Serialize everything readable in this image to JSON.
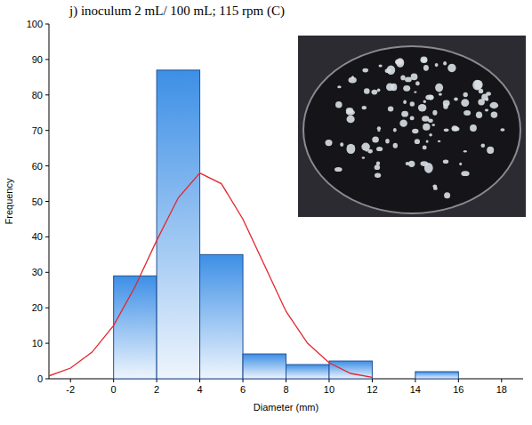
{
  "chart_data": {
    "type": "histogram",
    "title": "j) inoculum 2 mL/ 100 mL; 115 rpm (C)",
    "x_label": "Diameter (mm)",
    "y_label": "Frequency",
    "bins": [
      0,
      2,
      4,
      6,
      8,
      10,
      12,
      14,
      16
    ],
    "series": [
      {
        "type": "bar",
        "color": "#3d8fe6",
        "values": [
          29,
          87,
          35,
          7,
          4,
          5,
          0,
          2
        ]
      },
      {
        "type": "line",
        "color": "#e3262d",
        "x": [
          -3,
          -2,
          -1,
          0,
          1,
          2,
          3,
          4,
          5,
          6,
          7,
          8,
          9,
          10,
          11,
          12
        ],
        "values": [
          0.8,
          3,
          7.5,
          15,
          26,
          39,
          51,
          58,
          55,
          45,
          32,
          19,
          10,
          4.5,
          1.5,
          0.4
        ]
      }
    ],
    "xlim": [
      -3,
      19
    ],
    "ylim": [
      0,
      100
    ],
    "xticks": [
      -2,
      0,
      2,
      4,
      6,
      8,
      10,
      12,
      14,
      16,
      18
    ],
    "yticks": [
      0,
      10,
      20,
      30,
      40,
      50,
      60,
      70,
      80,
      90,
      100
    ],
    "grid": false
  }
}
